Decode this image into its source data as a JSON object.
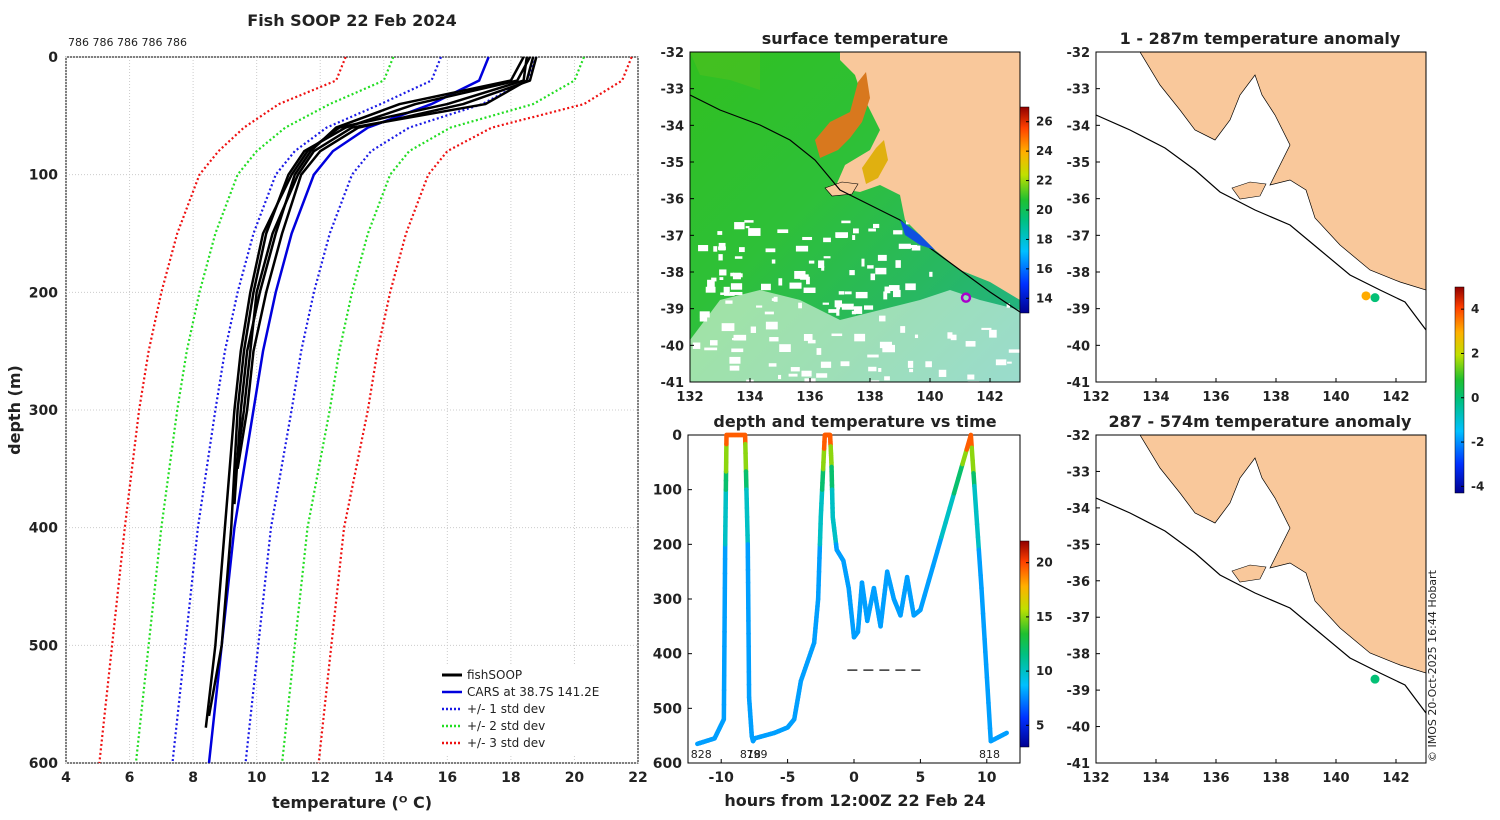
{
  "colors": {
    "black": "#000000",
    "cars": "#0000dd",
    "std1": "#1a1ae6",
    "std2": "#22dd22",
    "std3": "#ee1111",
    "land": "#f9c89b",
    "grid": "#cccccc",
    "marker": "#aa00cc"
  },
  "chart_data": [
    {
      "id": "profile",
      "type": "line",
      "title": "Fish SOOP 22 Feb 2024",
      "xlabel": "temperature (ᴼ C)",
      "ylabel": "depth (m)",
      "xlim": [
        4,
        22
      ],
      "ylim": [
        600,
        0
      ],
      "xticks": [
        "4",
        "6",
        "8",
        "10",
        "12",
        "14",
        "16",
        "18",
        "20",
        "22"
      ],
      "yticks": [
        "0",
        "100",
        "200",
        "300",
        "400",
        "500",
        "600"
      ],
      "top_annotation": "786 786 786 786 786",
      "legend": [
        "fishSOOP",
        "CARS at 38.7S 141.2E",
        "+/- 1 std dev",
        "+/- 2 std dev",
        "+/- 3 std dev"
      ],
      "depth": [
        0,
        20,
        40,
        60,
        80,
        100,
        150,
        200,
        250,
        300,
        400,
        500,
        600
      ],
      "cars_mean": [
        17.3,
        17,
        15.5,
        13.5,
        12.4,
        11.8,
        11.1,
        10.6,
        10.2,
        9.9,
        9.3,
        8.9,
        8.5
      ],
      "cars_std": [
        1.5,
        1.5,
        1.6,
        1.3,
        1.2,
        1.2,
        1.2,
        1.2,
        1.2,
        1.2,
        1.15,
        1.15,
        1.15
      ],
      "fish_profiles": [
        {
          "depth": [
            0,
            20,
            40,
            60,
            80,
            100,
            150,
            200,
            250,
            300,
            360
          ],
          "temp": [
            18.7,
            18.5,
            17.2,
            13.0,
            11.8,
            11.3,
            10.5,
            10.0,
            9.8,
            9.6,
            9.3
          ]
        },
        {
          "depth": [
            0,
            20,
            40,
            60,
            80,
            100,
            150,
            200,
            250,
            300,
            400,
            500,
            570
          ],
          "temp": [
            18.5,
            18.4,
            16.0,
            12.6,
            11.6,
            11.1,
            10.2,
            9.8,
            9.5,
            9.3,
            9.0,
            8.7,
            8.4
          ]
        },
        {
          "depth": [
            0,
            20,
            40,
            60,
            80,
            100,
            150,
            200,
            250,
            300,
            400,
            500,
            560
          ],
          "temp": [
            18.6,
            18.2,
            15.0,
            12.8,
            11.5,
            11.0,
            10.3,
            9.9,
            9.6,
            9.4,
            9.2,
            8.9,
            8.5
          ]
        },
        {
          "depth": [
            0,
            20,
            40,
            60,
            80,
            100,
            150,
            200,
            250,
            300,
            350
          ],
          "temp": [
            18.8,
            18.6,
            16.5,
            13.2,
            12.0,
            11.4,
            10.8,
            10.3,
            9.9,
            9.7,
            9.4
          ]
        },
        {
          "depth": [
            0,
            20,
            40,
            60,
            80,
            100,
            150,
            200,
            250,
            300,
            380
          ],
          "temp": [
            18.4,
            18.0,
            14.5,
            12.5,
            11.7,
            11.2,
            10.6,
            10.1,
            9.7,
            9.5,
            9.3
          ]
        }
      ]
    },
    {
      "id": "sst",
      "type": "heatmap",
      "title": "surface temperature",
      "xlim": [
        132,
        143
      ],
      "ylim": [
        -41,
        -32
      ],
      "xticks": [
        "132",
        "134",
        "136",
        "138",
        "140",
        "142"
      ],
      "yticks": [
        "-32",
        "-33",
        "-34",
        "-35",
        "-36",
        "-37",
        "-38",
        "-39",
        "-40",
        "-41"
      ],
      "colorbar": {
        "min": 13,
        "max": 27,
        "ticks": [
          "14",
          "16",
          "18",
          "20",
          "22",
          "24",
          "26"
        ]
      },
      "marker": {
        "lon": 141.2,
        "lat": -38.7
      }
    },
    {
      "id": "timeseries",
      "type": "line",
      "title": "depth and temperature vs time",
      "xlabel": "hours from 12:00Z 22 Feb 24",
      "xlim": [
        -12.5,
        12.5
      ],
      "ylim": [
        600,
        0
      ],
      "xticks": [
        "-10",
        "-5",
        "0",
        "5",
        "10"
      ],
      "yticks": [
        "0",
        "100",
        "200",
        "300",
        "400",
        "500",
        "600"
      ],
      "colorbar": {
        "min": 3,
        "max": 22,
        "ticks": [
          "5",
          "10",
          "15",
          "20"
        ]
      },
      "time": [
        -11.8,
        -10.5,
        -9.8,
        -9.7,
        -9.6,
        -8.2,
        -8.0,
        -7.9,
        -7.7,
        -7.6,
        -7.5,
        -6,
        -5,
        -4.5,
        -4,
        -3,
        -2.7,
        -2.5,
        -2.2,
        -1.8,
        -1.7,
        -1.6,
        -1.3,
        -0.8,
        -0.4,
        0,
        0.3,
        0.6,
        1,
        1.5,
        2,
        2.5,
        3,
        3.5,
        4,
        4.5,
        5,
        8.8,
        9.6,
        10.3,
        11.5
      ],
      "depth": [
        565,
        555,
        520,
        200,
        0,
        0,
        200,
        480,
        550,
        560,
        555,
        545,
        535,
        520,
        450,
        380,
        300,
        150,
        0,
        0,
        50,
        150,
        210,
        230,
        280,
        370,
        360,
        270,
        340,
        280,
        350,
        250,
        300,
        330,
        260,
        330,
        320,
        0,
        280,
        560,
        545
      ],
      "dashed_y": 430,
      "dashed_x": [
        -0.5,
        5.0
      ],
      "bottom_labels": [
        {
          "t": -11.5,
          "text": "828"
        },
        {
          "t": -7.8,
          "text": "818"
        },
        {
          "t": -7.3,
          "text": "799"
        },
        {
          "t": 10.2,
          "text": "818"
        }
      ]
    },
    {
      "id": "anom1",
      "type": "heatmap",
      "title": "1 - 287m temperature anomaly",
      "xlim": [
        132,
        143
      ],
      "ylim": [
        -41,
        -32
      ],
      "xticks": [
        "132",
        "134",
        "136",
        "138",
        "140",
        "142"
      ],
      "yticks": [
        "-32",
        "-33",
        "-34",
        "-35",
        "-36",
        "-37",
        "-38",
        "-39",
        "-40",
        "-41"
      ],
      "colorbar": {
        "min": -4.3,
        "max": 5,
        "ticks": [
          "4",
          "2",
          "0",
          "-2",
          "-4"
        ]
      },
      "points": [
        {
          "lon": 141.0,
          "lat": -38.65,
          "value": 3
        },
        {
          "lon": 141.3,
          "lat": -38.7,
          "value": 0
        }
      ]
    },
    {
      "id": "anom2",
      "type": "heatmap",
      "title": "287 - 574m temperature anomaly",
      "xlim": [
        132,
        143
      ],
      "ylim": [
        -41,
        -32
      ],
      "xticks": [
        "132",
        "134",
        "136",
        "138",
        "140",
        "142"
      ],
      "yticks": [
        "-32",
        "-33",
        "-34",
        "-35",
        "-36",
        "-37",
        "-38",
        "-39",
        "-40",
        "-41"
      ],
      "points": [
        {
          "lon": 141.3,
          "lat": -38.7,
          "value": 0
        }
      ]
    }
  ],
  "credit": "© IMOS 20-Oct-2025 16:44 Hobart"
}
